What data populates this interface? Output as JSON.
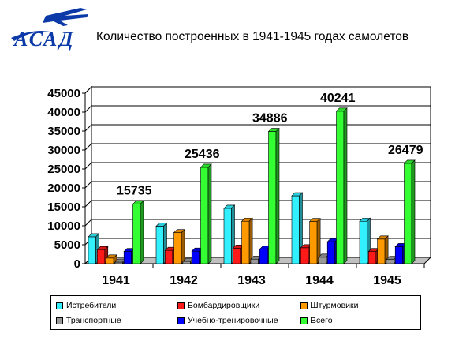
{
  "header": {
    "logo_text": "АСАД",
    "title": "Количество построенных в 1941-1945 годах самолетов"
  },
  "colors": {
    "Истребители": "#33f0ff",
    "Бомбардировщики": "#ff1a1a",
    "Штурмовики": "#ff9900",
    "Транспортные": "#999999",
    "Учебно-тренировочные": "#0000ff",
    "Всего": "#33ff33",
    "logo": "#0b3aa8"
  },
  "chart_data": {
    "type": "bar",
    "categories": [
      "1941",
      "1942",
      "1943",
      "1944",
      "1945"
    ],
    "ylim": [
      0,
      45000
    ],
    "yticks": [
      0,
      5000,
      10000,
      15000,
      20000,
      25000,
      30000,
      35000,
      40000,
      45000
    ],
    "grid": true,
    "legend_position": "bottom",
    "series": [
      {
        "name": "Истребители",
        "values": [
          7100,
          9900,
          14600,
          17900,
          11200
        ]
      },
      {
        "name": "Бомбардировщики",
        "values": [
          3700,
          3500,
          4100,
          4200,
          3200
        ]
      },
      {
        "name": "Штурмовики",
        "values": [
          1500,
          8200,
          11200,
          11100,
          6500
        ]
      },
      {
        "name": "Транспортные",
        "values": [
          400,
          600,
          1200,
          1700,
          1100
        ]
      },
      {
        "name": "Учебно-тренировочные",
        "values": [
          3200,
          3300,
          3800,
          5800,
          4500
        ]
      },
      {
        "name": "Всего",
        "values": [
          15735,
          25436,
          34886,
          40241,
          26479
        ]
      }
    ],
    "data_labels": [
      "15735",
      "25436",
      "34886",
      "40241",
      "26479"
    ]
  }
}
